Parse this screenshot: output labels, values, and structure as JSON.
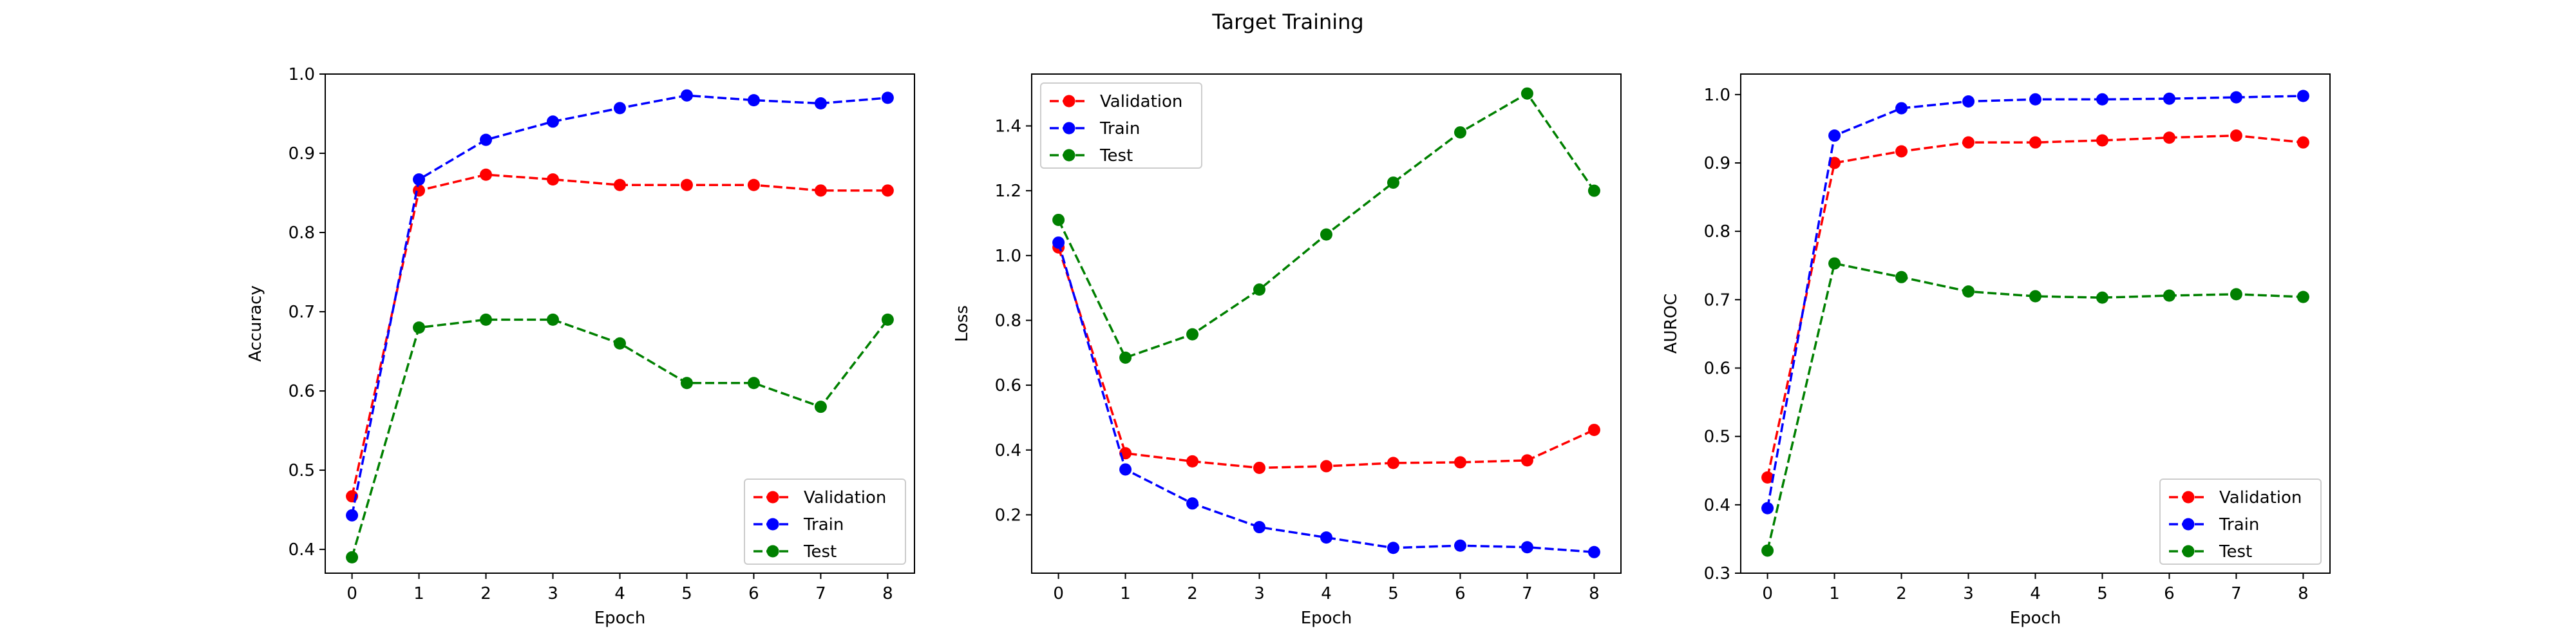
{
  "figure": {
    "title": "Target Training"
  },
  "colors": {
    "Validation": "#ff0000",
    "Train": "#0000ff",
    "Test": "#008000"
  },
  "chart_data": [
    {
      "type": "line",
      "xlabel": "Epoch",
      "ylabel": "Accuracy",
      "x": [
        0,
        1,
        2,
        3,
        4,
        5,
        6,
        7,
        8
      ],
      "xticks": [
        "0",
        "1",
        "2",
        "3",
        "4",
        "5",
        "6",
        "7",
        "8"
      ],
      "xlim": [
        -0.4,
        8.4
      ],
      "ylim": [
        0.37,
        1.0
      ],
      "yticks": [
        "0.4",
        "0.5",
        "0.6",
        "0.7",
        "0.8",
        "0.9",
        "1.0"
      ],
      "legend": "lower right",
      "series": [
        {
          "name": "Validation",
          "values": [
            0.467,
            0.853,
            0.873,
            0.867,
            0.86,
            0.86,
            0.86,
            0.853,
            0.853
          ]
        },
        {
          "name": "Train",
          "values": [
            0.443,
            0.867,
            0.917,
            0.94,
            0.957,
            0.973,
            0.967,
            0.963,
            0.97
          ]
        },
        {
          "name": "Test",
          "values": [
            0.39,
            0.68,
            0.69,
            0.69,
            0.66,
            0.61,
            0.61,
            0.58,
            0.69
          ]
        }
      ]
    },
    {
      "type": "line",
      "xlabel": "Epoch",
      "ylabel": "Loss",
      "x": [
        0,
        1,
        2,
        3,
        4,
        5,
        6,
        7,
        8
      ],
      "xticks": [
        "0",
        "1",
        "2",
        "3",
        "4",
        "5",
        "6",
        "7",
        "8"
      ],
      "xlim": [
        -0.4,
        8.4
      ],
      "ylim": [
        0.02,
        1.56
      ],
      "yticks": [
        "0.2",
        "0.4",
        "0.6",
        "0.8",
        "1.0",
        "1.2",
        "1.4"
      ],
      "legend": "upper left",
      "series": [
        {
          "name": "Validation",
          "values": [
            1.025,
            0.39,
            0.365,
            0.345,
            0.35,
            0.36,
            0.362,
            0.368,
            0.462
          ]
        },
        {
          "name": "Train",
          "values": [
            1.04,
            0.34,
            0.235,
            0.162,
            0.13,
            0.098,
            0.105,
            0.1,
            0.085
          ]
        },
        {
          "name": "Test",
          "values": [
            1.11,
            0.685,
            0.757,
            0.895,
            1.065,
            1.225,
            1.38,
            1.5,
            1.2
          ]
        }
      ]
    },
    {
      "type": "line",
      "xlabel": "Epoch",
      "ylabel": "AUROC",
      "x": [
        0,
        1,
        2,
        3,
        4,
        5,
        6,
        7,
        8
      ],
      "xticks": [
        "0",
        "1",
        "2",
        "3",
        "4",
        "5",
        "6",
        "7",
        "8"
      ],
      "xlim": [
        -0.4,
        8.4
      ],
      "ylim": [
        0.3,
        1.03
      ],
      "yticks": [
        "0.3",
        "0.4",
        "0.5",
        "0.6",
        "0.7",
        "0.8",
        "0.9",
        "1.0"
      ],
      "legend": "lower right",
      "series": [
        {
          "name": "Validation",
          "values": [
            0.44,
            0.9,
            0.917,
            0.93,
            0.93,
            0.933,
            0.937,
            0.94,
            0.93
          ]
        },
        {
          "name": "Train",
          "values": [
            0.395,
            0.94,
            0.98,
            0.99,
            0.993,
            0.993,
            0.994,
            0.996,
            0.998
          ]
        },
        {
          "name": "Test",
          "values": [
            0.333,
            0.753,
            0.733,
            0.712,
            0.705,
            0.703,
            0.706,
            0.708,
            0.704
          ]
        }
      ]
    }
  ]
}
